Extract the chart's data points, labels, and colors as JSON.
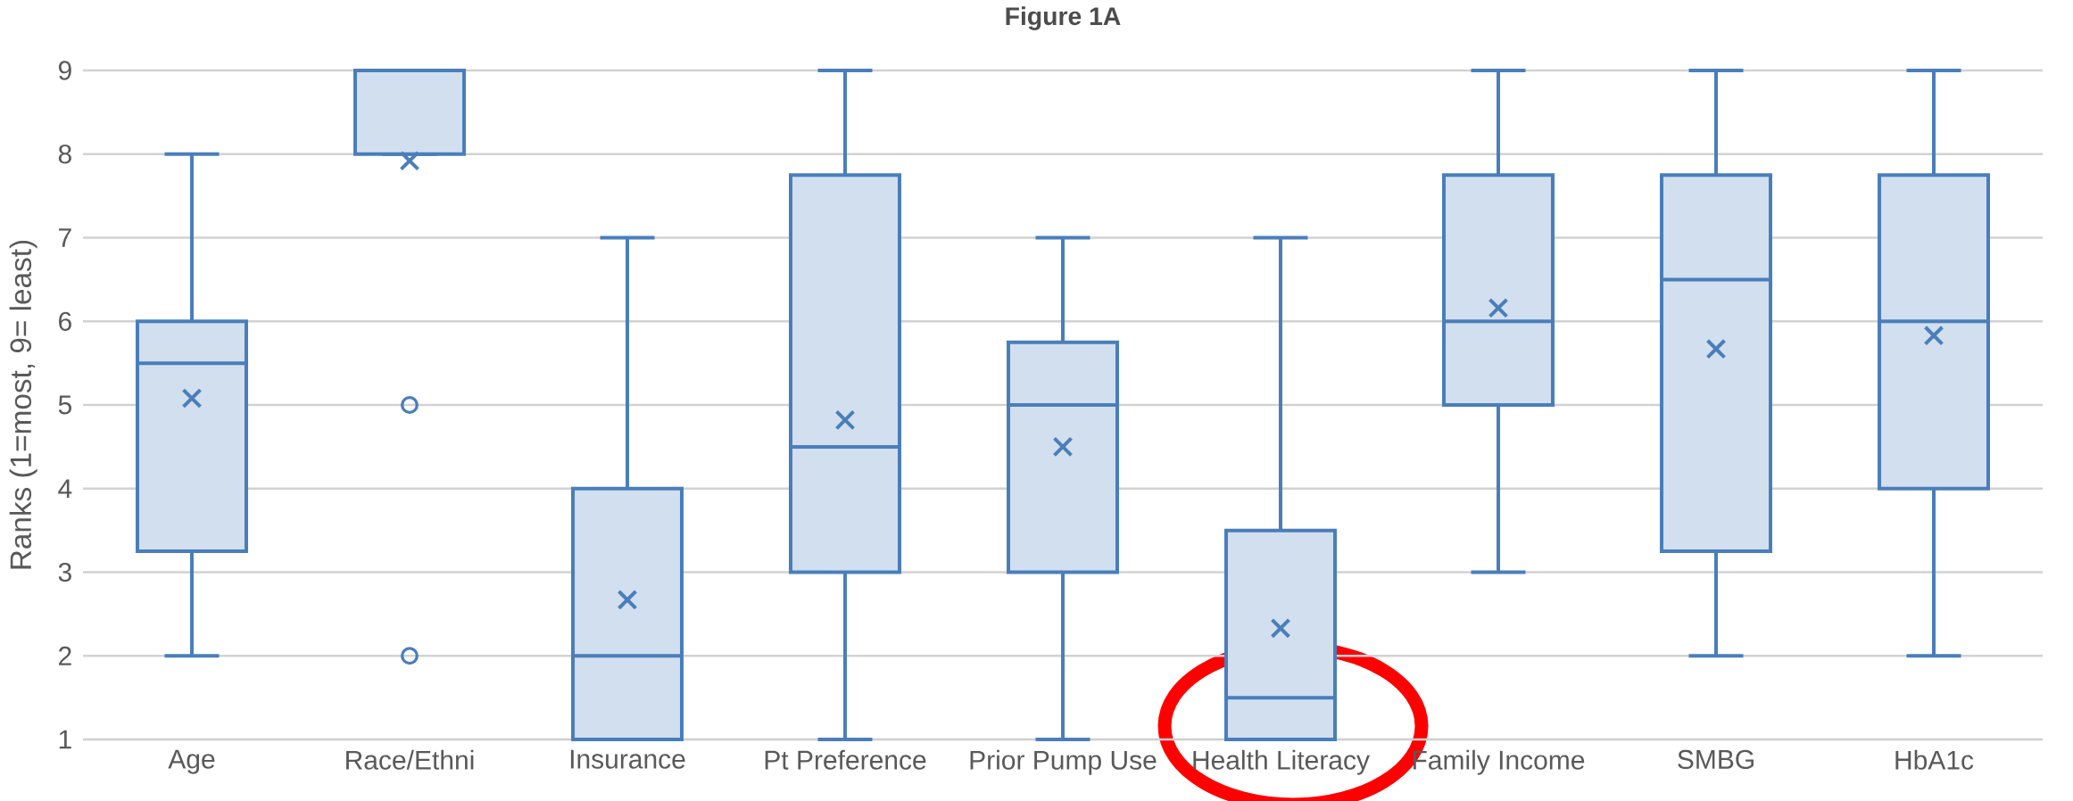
{
  "chart_data": {
    "type": "box",
    "title": "Figure 1A",
    "ylabel": "Ranks (1=most, 9= least)",
    "categories": [
      "Age",
      "Race/Ethni",
      "Insurance",
      "Pt Preference",
      "Prior Pump Use",
      "Health Literacy",
      "Family Income",
      "SMBG",
      "HbA1c"
    ],
    "color": "#4a7ebb",
    "boxes": [
      {
        "low": 2,
        "q1": 3.25,
        "median": 5.5,
        "q3": 6,
        "high": 8,
        "mean": 5.08
      },
      {
        "low": 8,
        "q1": 8,
        "median": 9,
        "q3": 9,
        "high": 9,
        "mean": 7.92,
        "outliers": [
          5,
          2
        ]
      },
      {
        "low": 1,
        "q1": 1,
        "median": 2,
        "q3": 4,
        "high": 7,
        "mean": 2.67
      },
      {
        "low": 1,
        "q1": 3,
        "median": 4.5,
        "q3": 7.75,
        "high": 9,
        "mean": 4.82
      },
      {
        "low": 1,
        "q1": 3,
        "median": 5,
        "q3": 5.75,
        "high": 7,
        "mean": 4.5
      },
      {
        "low": 1,
        "q1": 1,
        "median": 1.5,
        "q3": 3.5,
        "high": 7,
        "mean": 2.33
      },
      {
        "low": 3,
        "q1": 5,
        "median": 6,
        "q3": 7.75,
        "high": 9,
        "mean": 6.16
      },
      {
        "low": 2,
        "q1": 3.25,
        "median": 6.5,
        "q3": 7.75,
        "high": 9,
        "mean": 5.67
      },
      {
        "low": 2,
        "q1": 4,
        "median": 6,
        "q3": 7.75,
        "high": 9,
        "mean": 5.83
      }
    ],
    "ylim": [
      1,
      9
    ],
    "yticks": [
      1,
      2,
      3,
      4,
      5,
      6,
      7,
      8,
      9
    ],
    "grid": "y"
  }
}
